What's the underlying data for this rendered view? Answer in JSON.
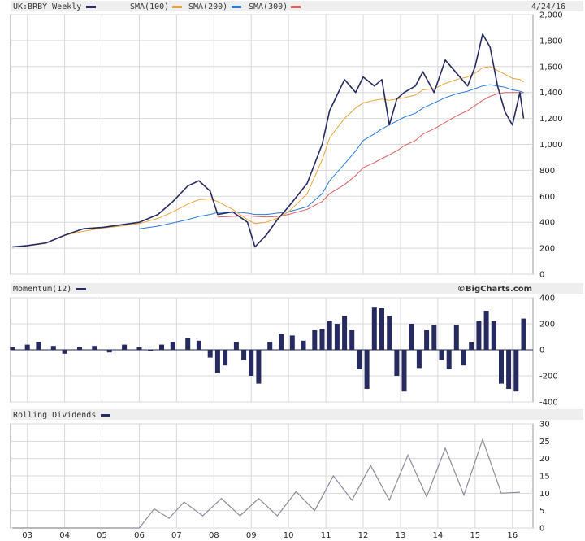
{
  "header": {
    "symbol_label": "UK:BRBY Weekly",
    "date": "4/24/16",
    "legend": [
      {
        "label": "SMA(100)",
        "color": "#e8a33c"
      },
      {
        "label": "SMA(200)",
        "color": "#2b7bd6"
      },
      {
        "label": "SMA(300)",
        "color": "#d9605f"
      }
    ]
  },
  "branding": "©BigCharts.com",
  "colors": {
    "price": "#262a5e",
    "momentum": "#262a5e",
    "dividends": "#8a8c99",
    "grid": "#d9d9d9",
    "header_bg": "#eeeeee"
  },
  "x_axis": {
    "labels": [
      "03",
      "04",
      "05",
      "06",
      "07",
      "08",
      "09",
      "10",
      "11",
      "12",
      "13",
      "14",
      "15",
      "16"
    ]
  },
  "chart_data": [
    {
      "type": "line",
      "title": "UK:BRBY Weekly",
      "y_ticks": [
        "0",
        "200",
        "400",
        "600",
        "800",
        "1,000",
        "1,200",
        "1,400",
        "1,600",
        "1,800",
        "2,000"
      ],
      "ylim": [
        0,
        2000
      ],
      "x": [
        2002.6,
        2003.0,
        2003.5,
        2004.0,
        2004.5,
        2005.0,
        2005.5,
        2006.0,
        2006.5,
        2006.9,
        2007.3,
        2007.6,
        2007.9,
        2008.1,
        2008.5,
        2008.9,
        2009.1,
        2009.4,
        2009.7,
        2010.0,
        2010.5,
        2010.9,
        2011.1,
        2011.5,
        2011.8,
        2012.0,
        2012.3,
        2012.5,
        2012.7,
        2012.9,
        2013.1,
        2013.4,
        2013.6,
        2013.9,
        2014.2,
        2014.5,
        2014.8,
        2015.0,
        2015.2,
        2015.4,
        2015.6,
        2015.8,
        2016.0,
        2016.2,
        2016.3
      ],
      "series": [
        {
          "name": "UK:BRBY Weekly",
          "values": [
            210,
            220,
            240,
            300,
            350,
            360,
            380,
            400,
            460,
            560,
            680,
            720,
            640,
            460,
            480,
            400,
            210,
            300,
            420,
            520,
            700,
            1000,
            1260,
            1500,
            1400,
            1520,
            1450,
            1500,
            1150,
            1350,
            1400,
            1450,
            1560,
            1400,
            1650,
            1550,
            1450,
            1600,
            1850,
            1750,
            1450,
            1250,
            1150,
            1400,
            1200
          ]
        },
        {
          "name": "SMA(100)",
          "values": [
            null,
            null,
            null,
            300,
            330,
            355,
            370,
            390,
            430,
            480,
            540,
            575,
            580,
            560,
            500,
            420,
            390,
            400,
            430,
            480,
            620,
            880,
            1050,
            1200,
            1280,
            1320,
            1340,
            1350,
            1340,
            1350,
            1360,
            1380,
            1420,
            1430,
            1470,
            1500,
            1520,
            1550,
            1590,
            1600,
            1570,
            1540,
            1510,
            1500,
            1480
          ]
        },
        {
          "name": "SMA(200)",
          "values": [
            null,
            null,
            null,
            null,
            null,
            null,
            null,
            350,
            370,
            395,
            420,
            445,
            460,
            475,
            480,
            470,
            460,
            460,
            470,
            480,
            520,
            620,
            720,
            850,
            950,
            1030,
            1080,
            1120,
            1150,
            1180,
            1210,
            1240,
            1280,
            1320,
            1360,
            1390,
            1410,
            1430,
            1450,
            1460,
            1450,
            1440,
            1420,
            1410,
            1400
          ]
        },
        {
          "name": "SMA(300)",
          "values": [
            null,
            null,
            null,
            null,
            null,
            null,
            null,
            null,
            null,
            null,
            null,
            null,
            null,
            440,
            445,
            450,
            445,
            440,
            445,
            460,
            500,
            560,
            620,
            690,
            760,
            820,
            860,
            890,
            920,
            950,
            990,
            1030,
            1080,
            1120,
            1170,
            1220,
            1260,
            1300,
            1340,
            1370,
            1390,
            1400,
            1400,
            1400,
            1390
          ]
        }
      ]
    },
    {
      "type": "bar",
      "title": "Momentum(12)",
      "y_ticks": [
        "400",
        "200",
        "0",
        "-200",
        "-400"
      ],
      "ylim": [
        -400,
        400
      ],
      "x": [
        2002.6,
        2003.0,
        2003.3,
        2003.7,
        2004.0,
        2004.4,
        2004.8,
        2005.2,
        2005.6,
        2006.0,
        2006.3,
        2006.6,
        2006.9,
        2007.3,
        2007.6,
        2007.9,
        2008.1,
        2008.3,
        2008.6,
        2008.8,
        2009.0,
        2009.2,
        2009.5,
        2009.8,
        2010.1,
        2010.4,
        2010.7,
        2010.9,
        2011.1,
        2011.3,
        2011.5,
        2011.7,
        2011.9,
        2012.1,
        2012.3,
        2012.5,
        2012.7,
        2012.9,
        2013.1,
        2013.3,
        2013.5,
        2013.7,
        2013.9,
        2014.1,
        2014.3,
        2014.5,
        2014.7,
        2014.9,
        2015.1,
        2015.3,
        2015.5,
        2015.7,
        2015.9,
        2016.1,
        2016.3
      ],
      "values": [
        20,
        40,
        60,
        30,
        -30,
        20,
        30,
        -20,
        40,
        20,
        -10,
        40,
        60,
        90,
        70,
        -60,
        -180,
        -120,
        60,
        -80,
        -200,
        -260,
        60,
        120,
        110,
        70,
        150,
        160,
        220,
        200,
        260,
        150,
        -150,
        -300,
        330,
        320,
        260,
        -200,
        -320,
        200,
        -140,
        150,
        190,
        -80,
        -150,
        190,
        -120,
        60,
        220,
        300,
        220,
        -260,
        -300,
        -320,
        240
      ]
    },
    {
      "type": "line",
      "title": "Rolling Dividends",
      "y_ticks": [
        "30",
        "25",
        "20",
        "15",
        "10",
        "5",
        "0"
      ],
      "ylim": [
        0,
        30
      ],
      "x": [
        2002.6,
        2003.0,
        2004.0,
        2005.0,
        2006.0,
        2006.4,
        2006.8,
        2007.2,
        2007.7,
        2008.2,
        2008.7,
        2009.2,
        2009.7,
        2010.2,
        2010.7,
        2011.2,
        2011.7,
        2012.2,
        2012.7,
        2013.2,
        2013.7,
        2014.2,
        2014.7,
        2015.2,
        2015.7,
        2016.2
      ],
      "values": [
        0,
        0,
        0,
        0,
        0,
        5.5,
        2.8,
        7.5,
        3.5,
        8.5,
        3.5,
        8.5,
        3.5,
        10.5,
        5,
        15,
        8,
        18,
        8,
        21,
        9,
        23,
        9.5,
        25.5,
        10,
        10.3
      ]
    }
  ],
  "panels": {
    "price_label": "UK:BRBY Weekly",
    "momentum_label": "Momentum(12)",
    "dividends_label": "Rolling Dividends"
  }
}
